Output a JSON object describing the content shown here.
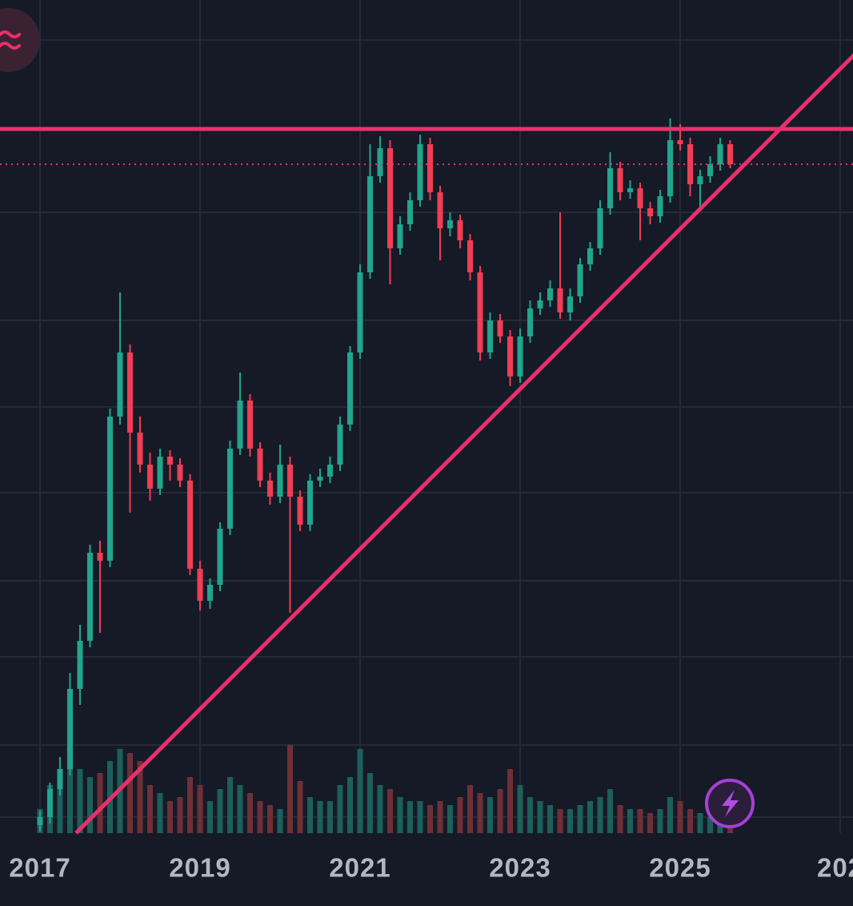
{
  "chart_data": {
    "type": "candlestick",
    "x": [
      2017,
      2017.125,
      2017.25,
      2017.375,
      2017.5,
      2017.625,
      2017.75,
      2017.875,
      2018,
      2018.125,
      2018.25,
      2018.375,
      2018.5,
      2018.625,
      2018.75,
      2018.875,
      2019,
      2019.125,
      2019.25,
      2019.375,
      2019.5,
      2019.625,
      2019.75,
      2019.875,
      2020,
      2020.125,
      2020.25,
      2020.375,
      2020.5,
      2020.625,
      2020.75,
      2020.875,
      2021,
      2021.125,
      2021.25,
      2021.375,
      2021.5,
      2021.625,
      2021.75,
      2021.875,
      2022,
      2022.125,
      2022.25,
      2022.375,
      2022.5,
      2022.625,
      2022.75,
      2022.875,
      2023,
      2023.125,
      2023.25,
      2023.375,
      2023.5,
      2023.625,
      2023.75,
      2023.875,
      2024,
      2024.125,
      2024.25,
      2024.375,
      2024.5,
      2024.625,
      2024.75,
      2024.875,
      2025,
      2025.125,
      2025.25,
      2025.375,
      2025.5,
      2025.625
    ],
    "open": [
      10,
      20,
      55,
      80,
      180,
      240,
      350,
      340,
      520,
      600,
      500,
      460,
      430,
      470,
      460,
      440,
      330,
      290,
      310,
      380,
      480,
      540,
      480,
      440,
      420,
      460,
      420,
      385,
      440,
      445,
      460,
      510,
      600,
      700,
      820,
      855,
      730,
      760,
      790,
      860,
      800,
      755,
      765,
      740,
      700,
      600,
      640,
      620,
      570,
      620,
      655,
      665,
      680,
      650,
      670,
      710,
      730,
      780,
      830,
      800,
      805,
      780,
      770,
      795,
      865,
      860,
      810,
      820,
      835,
      860
    ],
    "high": [
      28,
      63,
      95,
      200,
      260,
      360,
      365,
      530,
      675,
      610,
      520,
      475,
      480,
      478,
      468,
      448,
      340,
      318,
      388,
      490,
      575,
      548,
      488,
      450,
      485,
      470,
      428,
      448,
      455,
      470,
      520,
      608,
      710,
      860,
      870,
      865,
      770,
      800,
      872,
      868,
      808,
      775,
      772,
      748,
      708,
      650,
      648,
      628,
      630,
      665,
      675,
      690,
      775,
      680,
      718,
      738,
      790,
      850,
      838,
      815,
      812,
      788,
      803,
      892,
      885,
      868,
      828,
      845,
      868,
      865
    ],
    "low": [
      2,
      12,
      47,
      72,
      160,
      232,
      250,
      332,
      510,
      400,
      450,
      415,
      422,
      440,
      432,
      322,
      278,
      280,
      302,
      372,
      472,
      470,
      432,
      410,
      412,
      275,
      377,
      377,
      432,
      437,
      452,
      502,
      592,
      692,
      812,
      685,
      722,
      752,
      782,
      790,
      715,
      745,
      730,
      690,
      590,
      592,
      612,
      558,
      562,
      612,
      647,
      657,
      642,
      640,
      662,
      702,
      722,
      772,
      790,
      792,
      740,
      760,
      762,
      787,
      852,
      795,
      780,
      812,
      827,
      830
    ],
    "close": [
      20,
      55,
      80,
      180,
      240,
      350,
      340,
      520,
      600,
      500,
      460,
      430,
      470,
      460,
      440,
      330,
      290,
      310,
      380,
      480,
      540,
      480,
      440,
      420,
      460,
      420,
      385,
      440,
      445,
      460,
      510,
      600,
      700,
      820,
      855,
      730,
      760,
      790,
      860,
      800,
      755,
      765,
      740,
      700,
      600,
      640,
      620,
      570,
      620,
      655,
      665,
      680,
      650,
      670,
      710,
      730,
      780,
      830,
      800,
      805,
      780,
      770,
      795,
      865,
      860,
      810,
      820,
      835,
      860,
      835
    ],
    "volume": [
      30,
      60,
      80,
      100,
      80,
      70,
      75,
      90,
      105,
      100,
      90,
      60,
      50,
      40,
      45,
      70,
      60,
      40,
      55,
      70,
      60,
      50,
      40,
      35,
      30,
      110,
      65,
      45,
      40,
      40,
      60,
      70,
      105,
      75,
      60,
      55,
      45,
      40,
      40,
      35,
      40,
      35,
      45,
      60,
      50,
      45,
      55,
      80,
      60,
      45,
      40,
      35,
      30,
      30,
      35,
      40,
      45,
      55,
      35,
      30,
      30,
      25,
      30,
      45,
      40,
      30,
      25,
      20,
      15,
      10
    ],
    "up_color": "#22a58c",
    "down_color": "#ef3e55",
    "volume_up_color": "#1d5f5b",
    "volume_down_color": "#6e3038",
    "line_color": "#e9306a",
    "xlim": [
      2016.5,
      2027.16
    ],
    "ylim": [
      0,
      1040
    ],
    "volume_lim": [
      0,
      110
    ],
    "xticks": [
      2017,
      2019,
      2021,
      2023,
      2025,
      {
        "value": 2027,
        "label": "202"
      }
    ],
    "ygrid": [
      20,
      110,
      220,
      315,
      425,
      532,
      640,
      775,
      990
    ],
    "hline": 879,
    "price_line": 835,
    "trendline": {
      "x": [
        2017.45,
        2027.2
      ],
      "values": [
        0,
        974
      ]
    }
  }
}
